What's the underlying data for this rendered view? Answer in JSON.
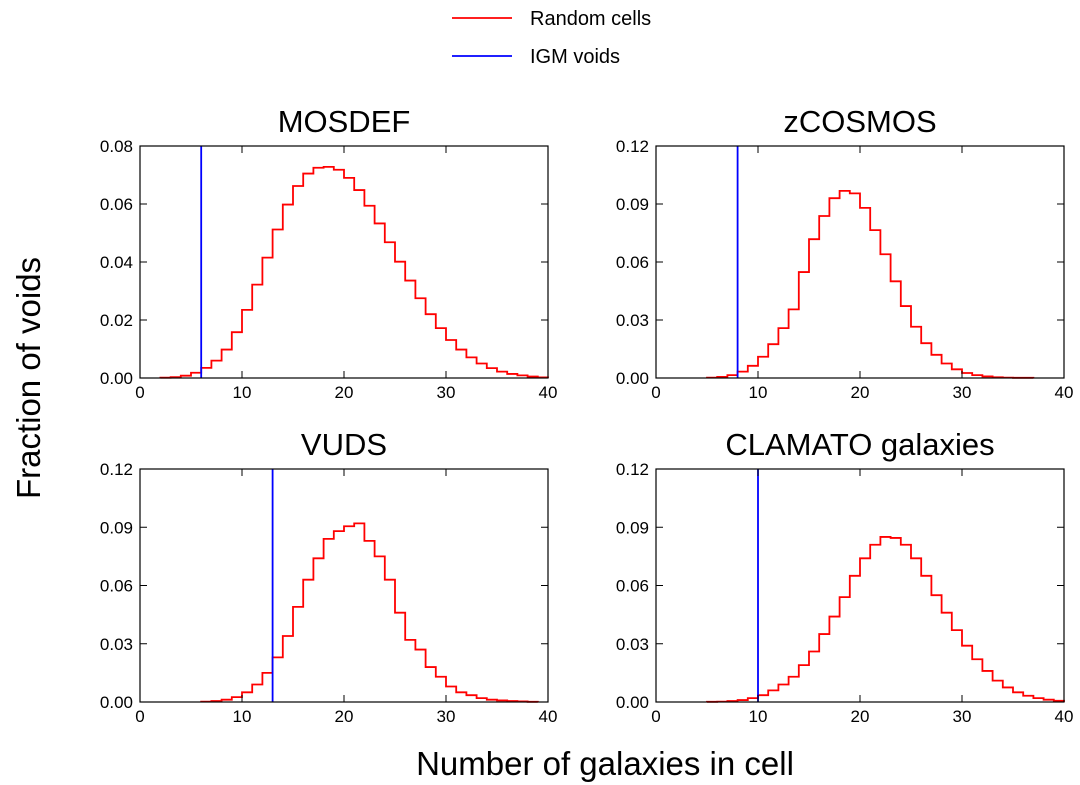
{
  "figure": {
    "ylabel": "Fraction of voids",
    "xlabel": "Number of galaxies in cell"
  },
  "legend": {
    "position": "top-center",
    "items": [
      {
        "label": "Random cells",
        "color": "#ff0000"
      },
      {
        "label": "IGM voids",
        "color": "#0000ff"
      }
    ]
  },
  "chart_data": [
    {
      "type": "histogram",
      "title": "MOSDEF",
      "xlim": [
        0,
        40
      ],
      "ylim": [
        0,
        0.08
      ],
      "xticks": [
        0,
        10,
        20,
        30,
        40
      ],
      "xtick_labels": [
        "0",
        "10",
        "20",
        "30",
        "40"
      ],
      "yticks": [
        0,
        0.02,
        0.04,
        0.06,
        0.08
      ],
      "ytick_labels": [
        "0.00",
        "0.02",
        "0.04",
        "0.06",
        "0.08"
      ],
      "bin_edges": [
        2,
        3,
        4,
        5,
        6,
        7,
        8,
        9,
        10,
        11,
        12,
        13,
        14,
        15,
        16,
        17,
        18,
        19,
        20,
        21,
        22,
        23,
        24,
        25,
        26,
        27,
        28,
        29,
        30,
        31,
        32,
        33,
        34,
        35,
        36,
        37,
        38,
        39,
        40
      ],
      "series": [
        {
          "name": "Random cells",
          "color": "#ff0000",
          "values": [
            0.0001,
            0.0003,
            0.0008,
            0.0018,
            0.0035,
            0.006,
            0.0098,
            0.0158,
            0.0235,
            0.0322,
            0.0415,
            0.0512,
            0.0598,
            0.0662,
            0.0705,
            0.0725,
            0.0728,
            0.0718,
            0.069,
            0.0648,
            0.0594,
            0.0533,
            0.0468,
            0.0401,
            0.0336,
            0.0275,
            0.022,
            0.0172,
            0.0131,
            0.0098,
            0.0071,
            0.005,
            0.0034,
            0.0022,
            0.0014,
            0.0009,
            0.0005,
            0.0002
          ]
        }
      ],
      "igm_void_x": 6
    },
    {
      "type": "histogram",
      "title": "zCOSMOS",
      "xlim": [
        0,
        40
      ],
      "ylim": [
        0,
        0.12
      ],
      "xticks": [
        0,
        10,
        20,
        30,
        40
      ],
      "xtick_labels": [
        "0",
        "10",
        "20",
        "30",
        "40"
      ],
      "yticks": [
        0,
        0.03,
        0.06,
        0.09,
        0.12
      ],
      "ytick_labels": [
        "0.00",
        "0.03",
        "0.06",
        "0.09",
        "0.12"
      ],
      "bin_edges": [
        5,
        6,
        7,
        8,
        9,
        10,
        11,
        12,
        13,
        14,
        15,
        16,
        17,
        18,
        19,
        20,
        21,
        22,
        23,
        24,
        25,
        26,
        27,
        28,
        29,
        30,
        31,
        32,
        33,
        34,
        35,
        36,
        37
      ],
      "series": [
        {
          "name": "Random cells",
          "color": "#ff0000",
          "values": [
            0.0002,
            0.0006,
            0.0015,
            0.0033,
            0.0063,
            0.011,
            0.0175,
            0.0258,
            0.0355,
            0.0548,
            0.0718,
            0.0838,
            0.093,
            0.0968,
            0.0955,
            0.088,
            0.0765,
            0.064,
            0.05,
            0.0372,
            0.0265,
            0.018,
            0.012,
            0.0075,
            0.0045,
            0.0026,
            0.0015,
            0.0008,
            0.0004,
            0.0002,
            0.0001,
            0.0001
          ]
        }
      ],
      "igm_void_x": 8
    },
    {
      "type": "histogram",
      "title": "VUDS",
      "xlim": [
        0,
        40
      ],
      "ylim": [
        0,
        0.12
      ],
      "xticks": [
        0,
        10,
        20,
        30,
        40
      ],
      "xtick_labels": [
        "0",
        "10",
        "20",
        "30",
        "40"
      ],
      "yticks": [
        0,
        0.03,
        0.06,
        0.09,
        0.12
      ],
      "ytick_labels": [
        "0.00",
        "0.03",
        "0.06",
        "0.09",
        "0.12"
      ],
      "bin_edges": [
        6,
        7,
        8,
        9,
        10,
        11,
        12,
        13,
        14,
        15,
        16,
        17,
        18,
        19,
        20,
        21,
        22,
        23,
        24,
        25,
        26,
        27,
        28,
        29,
        30,
        31,
        32,
        33,
        34,
        35,
        36,
        37,
        38,
        39
      ],
      "series": [
        {
          "name": "Random cells",
          "color": "#ff0000",
          "values": [
            0.0002,
            0.0005,
            0.0012,
            0.0025,
            0.005,
            0.009,
            0.015,
            0.023,
            0.034,
            0.049,
            0.063,
            0.074,
            0.084,
            0.088,
            0.0905,
            0.092,
            0.083,
            0.075,
            0.063,
            0.046,
            0.032,
            0.027,
            0.018,
            0.013,
            0.008,
            0.005,
            0.0035,
            0.002,
            0.0012,
            0.0008,
            0.0005,
            0.0003,
            0.0001
          ]
        }
      ],
      "igm_void_x": 13
    },
    {
      "type": "histogram",
      "title": "CLAMATO galaxies",
      "xlim": [
        0,
        40
      ],
      "ylim": [
        0,
        0.12
      ],
      "xticks": [
        0,
        10,
        20,
        30,
        40
      ],
      "xtick_labels": [
        "0",
        "10",
        "20",
        "30",
        "40"
      ],
      "yticks": [
        0,
        0.03,
        0.06,
        0.09,
        0.12
      ],
      "ytick_labels": [
        "0.00",
        "0.03",
        "0.06",
        "0.09",
        "0.12"
      ],
      "bin_edges": [
        5,
        6,
        7,
        8,
        9,
        10,
        11,
        12,
        13,
        14,
        15,
        16,
        17,
        18,
        19,
        20,
        21,
        22,
        23,
        24,
        25,
        26,
        27,
        28,
        29,
        30,
        31,
        32,
        33,
        34,
        35,
        36,
        37,
        38,
        39,
        40
      ],
      "series": [
        {
          "name": "Random cells",
          "color": "#ff0000",
          "values": [
            0.0001,
            0.0002,
            0.0005,
            0.001,
            0.002,
            0.0035,
            0.006,
            0.009,
            0.013,
            0.019,
            0.026,
            0.035,
            0.044,
            0.054,
            0.065,
            0.074,
            0.081,
            0.085,
            0.0845,
            0.081,
            0.074,
            0.065,
            0.055,
            0.046,
            0.037,
            0.029,
            0.022,
            0.016,
            0.011,
            0.0075,
            0.005,
            0.0032,
            0.002,
            0.0012,
            0.0006
          ]
        }
      ],
      "igm_void_x": 10
    }
  ]
}
